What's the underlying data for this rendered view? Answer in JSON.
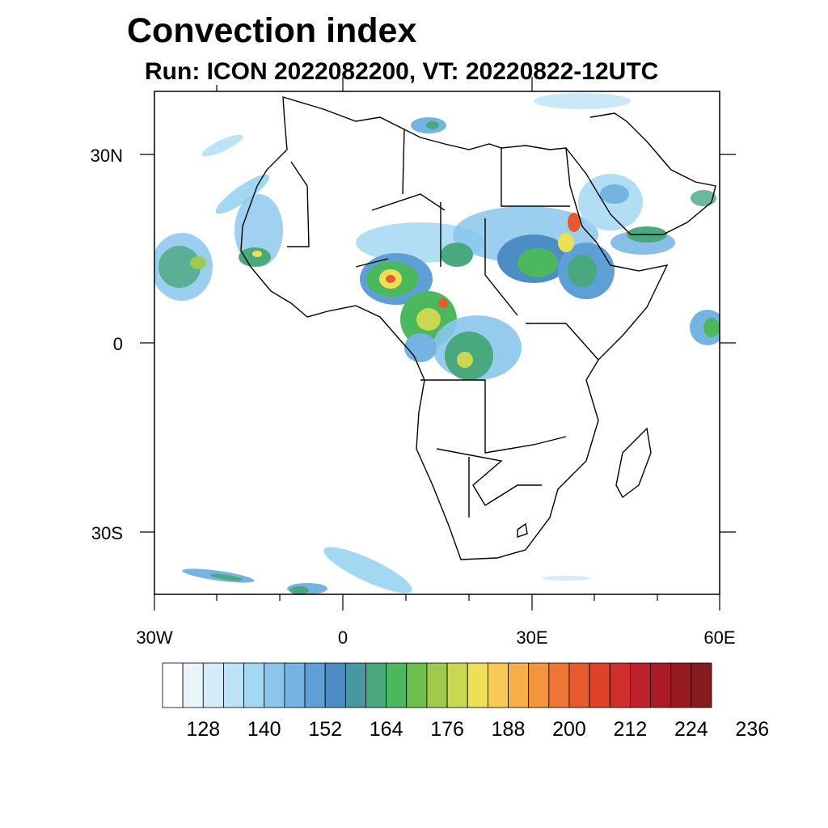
{
  "title": "Convection index",
  "subtitle": "Run: ICON 2022082200,  VT: 20220822-12UTC",
  "map": {
    "region": "Africa",
    "lon_range": [
      -30,
      60
    ],
    "lat_range": [
      -40,
      40
    ],
    "lat_tick_labels": [
      "30N",
      "0",
      "30S"
    ],
    "lon_tick_labels": [
      "30W",
      "0",
      "30E",
      "60E"
    ]
  },
  "colorbar": {
    "colors": [
      "#ffffff",
      "#e9f4fb",
      "#d4edf9",
      "#bde4f6",
      "#a3d8f3",
      "#8ac6ec",
      "#74b3e2",
      "#5e9fd6",
      "#4c8dc5",
      "#4798a2",
      "#4aa87f",
      "#4cb85e",
      "#6ebf4f",
      "#9fcb4d",
      "#c9d751",
      "#ede055",
      "#f7c955",
      "#f6af4a",
      "#f4943f",
      "#ee7533",
      "#e65a2c",
      "#de4329",
      "#d02e2b",
      "#bf212a",
      "#ab1b25",
      "#961a20",
      "#861a1d"
    ],
    "labels": [
      "128",
      "140",
      "152",
      "164",
      "176",
      "188",
      "200",
      "212",
      "224",
      "236"
    ]
  }
}
